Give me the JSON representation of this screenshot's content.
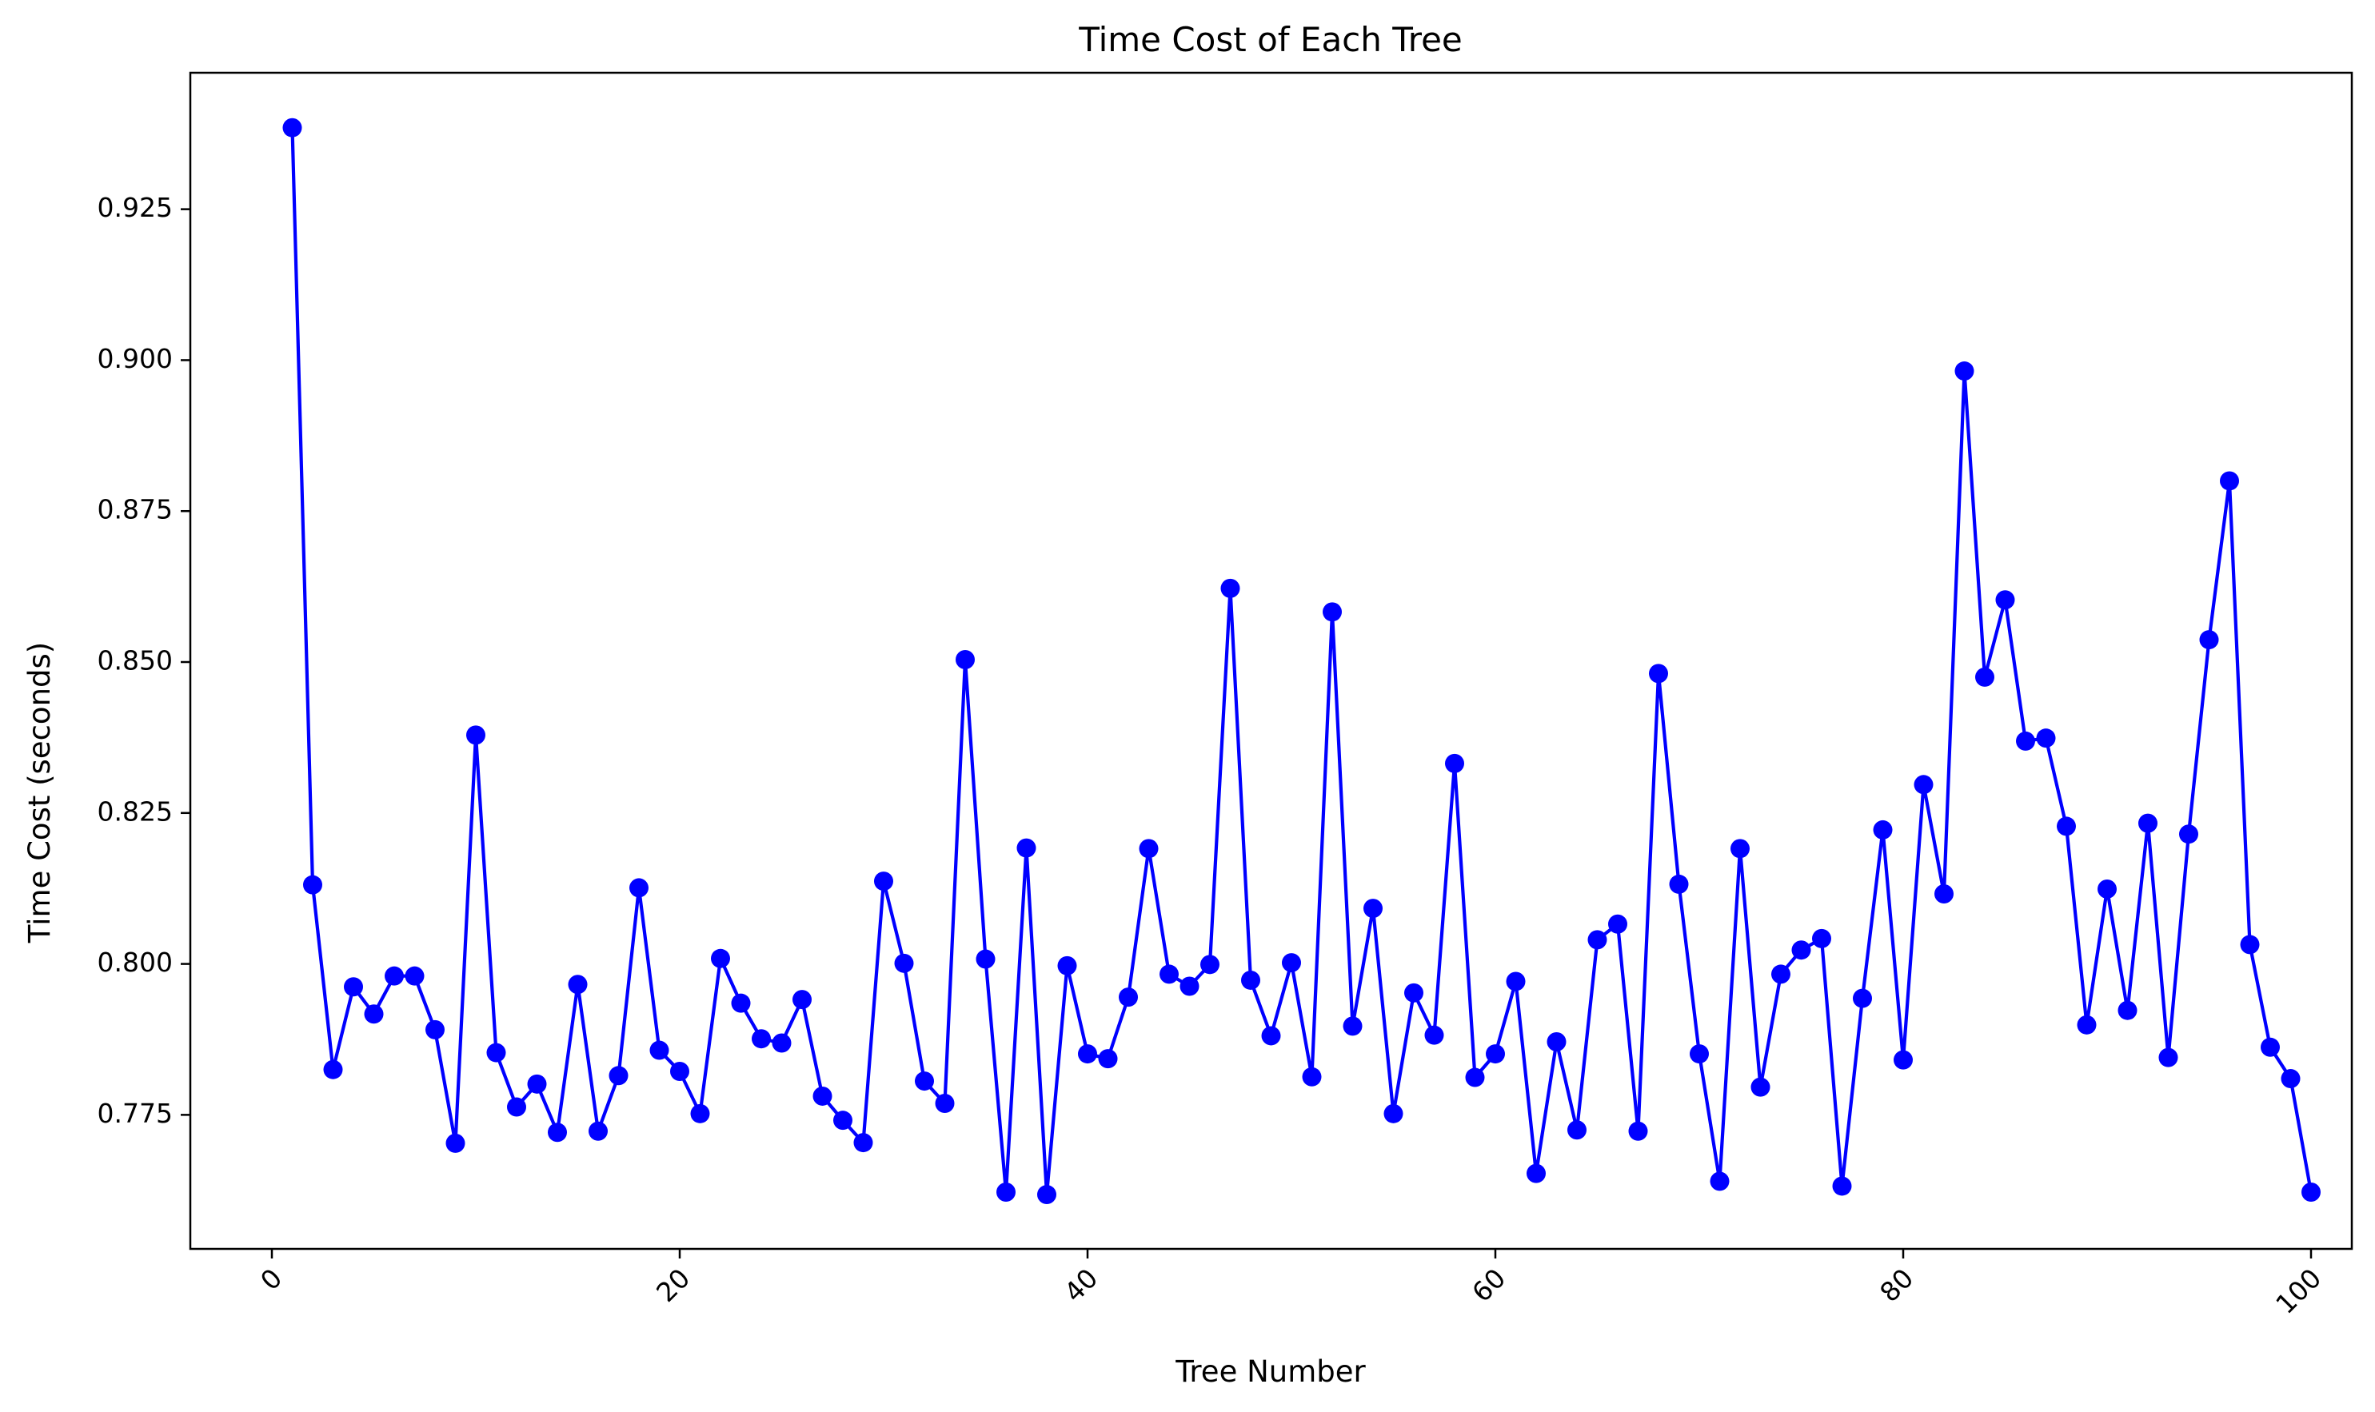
{
  "chart_data": {
    "type": "line",
    "title": "Time Cost of Each Tree",
    "xlabel": "Tree Number",
    "ylabel": "Time Cost (seconds)",
    "xlim": [
      -4,
      102
    ],
    "ylim": [
      0.7528,
      0.9476
    ],
    "xticks": [
      0,
      20,
      40,
      60,
      80,
      100
    ],
    "xtick_labels": [
      "0",
      "20",
      "40",
      "60",
      "80",
      "100"
    ],
    "xtick_rotation": -45,
    "yticks": [
      0.775,
      0.8,
      0.825,
      0.85,
      0.875,
      0.9,
      0.925
    ],
    "ytick_labels": [
      "0.775",
      "0.800",
      "0.825",
      "0.850",
      "0.875",
      "0.900",
      "0.925"
    ],
    "grid": false,
    "line_color": "#0000ff",
    "marker": "circle",
    "series": [
      {
        "x": [
          1,
          2,
          3,
          4,
          5,
          6,
          7,
          8,
          9,
          10,
          11,
          12,
          13,
          14,
          15,
          16,
          17,
          18,
          19,
          20,
          21,
          22,
          23,
          24,
          25,
          26,
          27,
          28,
          29,
          30,
          31,
          32,
          33,
          34,
          35,
          36,
          37,
          38,
          39,
          40,
          41,
          42,
          43,
          44,
          45,
          46,
          47,
          48,
          49,
          50,
          51,
          52,
          53,
          54,
          55,
          56,
          57,
          58,
          59,
          60,
          61,
          62,
          63,
          64,
          65,
          66,
          67,
          68,
          69,
          70,
          71,
          72,
          73,
          74,
          75,
          76,
          77,
          78,
          79,
          80,
          81,
          82,
          83,
          84,
          85,
          86,
          87,
          88,
          89,
          90,
          91,
          92,
          93,
          94,
          95,
          96,
          97,
          98,
          99,
          100
        ],
        "values": [
          0.9385,
          0.8131,
          0.7825,
          0.7962,
          0.7917,
          0.798,
          0.798,
          0.7891,
          0.7703,
          0.8379,
          0.7853,
          0.7763,
          0.7801,
          0.7721,
          0.7966,
          0.7723,
          0.7815,
          0.8126,
          0.7857,
          0.7822,
          0.7752,
          0.8009,
          0.7935,
          0.7876,
          0.7869,
          0.7941,
          0.7781,
          0.7741,
          0.7704,
          0.8137,
          0.8001,
          0.7806,
          0.7769,
          0.8504,
          0.8008,
          0.7622,
          0.8192,
          0.7618,
          0.7997,
          0.7851,
          0.7843,
          0.7945,
          0.8191,
          0.7983,
          0.7963,
          0.7999,
          0.8622,
          0.7973,
          0.7881,
          0.8002,
          0.7813,
          0.8583,
          0.7897,
          0.8092,
          0.7752,
          0.7952,
          0.7882,
          0.8332,
          0.7812,
          0.7851,
          0.7971,
          0.7653,
          0.7871,
          0.7725,
          0.804,
          0.8066,
          0.7723,
          0.8481,
          0.8132,
          0.7851,
          0.764,
          0.8191,
          0.7796,
          0.7983,
          0.8023,
          0.8042,
          0.7632,
          0.7943,
          0.8222,
          0.7841,
          0.8297,
          0.8116,
          0.8982,
          0.8475,
          0.8603,
          0.8369,
          0.8374,
          0.8228,
          0.7899,
          0.8124,
          0.7923,
          0.8233,
          0.7845,
          0.8215,
          0.8537,
          0.88,
          0.8032,
          0.7862,
          0.781,
          0.7622
        ]
      }
    ]
  }
}
